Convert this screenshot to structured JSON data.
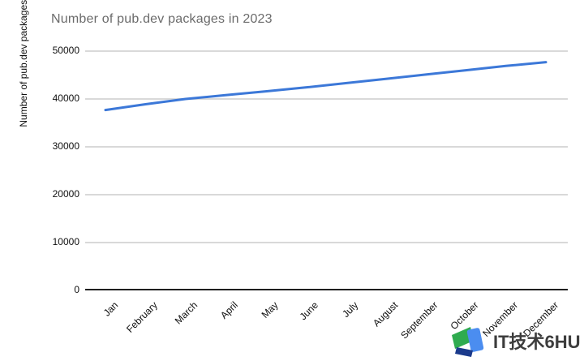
{
  "title": "Number of pub.dev packages in 2023",
  "chart_data": {
    "type": "line",
    "title": "Number of pub.dev packages in 2023",
    "xlabel": "",
    "ylabel": "Number of pub.dev packages",
    "x": [
      "Jan",
      "February",
      "March",
      "April",
      "May",
      "June",
      "July",
      "August",
      "September",
      "October",
      "November",
      "December"
    ],
    "series": [
      {
        "name": "Number of pub.dev packages",
        "values": [
          37700,
          38900,
          40000,
          40800,
          41600,
          42400,
          43300,
          44200,
          45100,
          46000,
          46900,
          47700
        ],
        "color": "#3c78d8"
      }
    ],
    "ylim": [
      0,
      50000
    ],
    "y_ticks": [
      0,
      10000,
      20000,
      30000,
      40000,
      50000
    ],
    "grid": true,
    "legend_position": "none"
  },
  "watermark": {
    "text": "IT技术6HU",
    "logo_colors": {
      "green": "#2fab4f",
      "blue": "#4b8df0",
      "dark_blue": "#1b3a8c"
    }
  }
}
